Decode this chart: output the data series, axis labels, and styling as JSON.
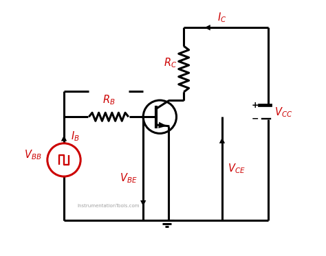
{
  "bg_color": "#ffffff",
  "line_color": "#000000",
  "red_color": "#cc0000",
  "line_width": 2.2,
  "fig_width": 4.74,
  "fig_height": 3.73,
  "watermark": "InstrumentationTools.com",
  "xlim": [
    0,
    10
  ],
  "ylim": [
    0,
    8
  ]
}
